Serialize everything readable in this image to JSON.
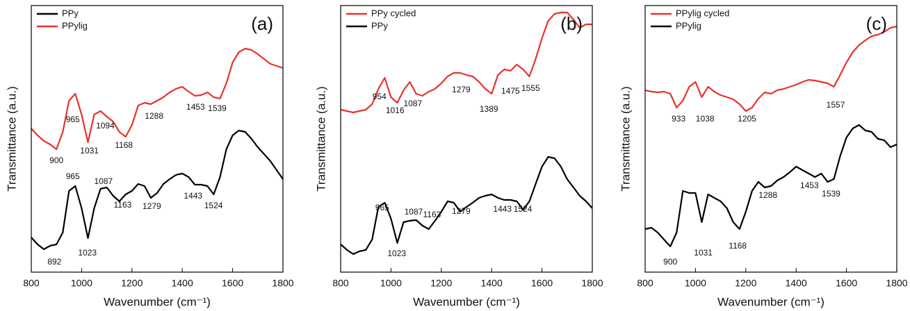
{
  "chart_data": [
    {
      "type": "line",
      "panel": "(a)",
      "xlabel": "Wavenumber (cm⁻¹)",
      "ylabel": "Transmittance (a.u.)",
      "xlim": [
        800,
        1800
      ],
      "xticks": [
        800,
        1000,
        1200,
        1400,
        1600,
        1800
      ],
      "ylim": [
        0,
        384
      ],
      "legend": "upper left",
      "x": [
        800,
        825,
        850,
        875,
        900,
        925,
        950,
        975,
        1000,
        1025,
        1050,
        1075,
        1100,
        1125,
        1150,
        1175,
        1200,
        1225,
        1250,
        1275,
        1300,
        1325,
        1350,
        1375,
        1400,
        1425,
        1450,
        1475,
        1500,
        1525,
        1550,
        1575,
        1600,
        1625,
        1650,
        1675,
        1700,
        1725,
        1750,
        1775,
        1800
      ],
      "series": [
        {
          "name": "PPy",
          "color": "#000000",
          "values": [
            50,
            40,
            33,
            38,
            40,
            57,
            117,
            124,
            92,
            49,
            92,
            120,
            122,
            110,
            102,
            112,
            117,
            127,
            124,
            107,
            114,
            127,
            134,
            140,
            142,
            137,
            126,
            126,
            124,
            112,
            137,
            177,
            197,
            204,
            202,
            192,
            180,
            170,
            160,
            147,
            134
          ]
        },
        {
          "name": "PPylig",
          "color": "#e8322e",
          "values": [
            207,
            197,
            189,
            184,
            177,
            202,
            247,
            257,
            227,
            187,
            227,
            232,
            224,
            217,
            202,
            195,
            212,
            240,
            244,
            242,
            247,
            252,
            259,
            264,
            267,
            260,
            254,
            255,
            259,
            252,
            250,
            272,
            302,
            317,
            322,
            320,
            314,
            307,
            300,
            297,
            294
          ]
        }
      ],
      "annotations": [
        {
          "text": "892",
          "x": 892,
          "y": 14
        },
        {
          "text": "965",
          "x": 965,
          "y": 137
        },
        {
          "text": "1023",
          "x": 1023,
          "y": 27
        },
        {
          "text": "1087",
          "x": 1087,
          "y": 130
        },
        {
          "text": "1163",
          "x": 1163,
          "y": 96
        },
        {
          "text": "1279",
          "x": 1279,
          "y": 94
        },
        {
          "text": "1443",
          "x": 1443,
          "y": 109
        },
        {
          "text": "1524",
          "x": 1524,
          "y": 95
        },
        {
          "text": "900",
          "x": 900,
          "y": 160
        },
        {
          "text": "965",
          "x": 965,
          "y": 219
        },
        {
          "text": "1031",
          "x": 1031,
          "y": 174
        },
        {
          "text": "1094",
          "x": 1094,
          "y": 210
        },
        {
          "text": "1168",
          "x": 1168,
          "y": 182
        },
        {
          "text": "1288",
          "x": 1288,
          "y": 224
        },
        {
          "text": "1453",
          "x": 1453,
          "y": 237
        },
        {
          "text": "1539",
          "x": 1539,
          "y": 235
        }
      ]
    },
    {
      "type": "line",
      "panel": "(b)",
      "xlabel": "Wavenumber (cm⁻¹)",
      "ylabel": "Transmittance (a.u.)",
      "xlim": [
        800,
        1800
      ],
      "xticks": [
        800,
        1000,
        1200,
        1400,
        1600,
        1800
      ],
      "ylim": [
        0,
        384
      ],
      "legend": "upper left",
      "x": [
        800,
        825,
        850,
        875,
        900,
        925,
        950,
        975,
        1000,
        1025,
        1050,
        1075,
        1100,
        1125,
        1150,
        1175,
        1200,
        1225,
        1250,
        1275,
        1300,
        1325,
        1350,
        1375,
        1400,
        1425,
        1450,
        1475,
        1500,
        1525,
        1550,
        1575,
        1600,
        1625,
        1650,
        1675,
        1700,
        1725,
        1750,
        1775,
        1800
      ],
      "series": [
        {
          "name": "PPy cycled",
          "color": "#e8322e",
          "values": [
            234,
            232,
            230,
            232,
            234,
            242,
            264,
            280,
            252,
            244,
            262,
            274,
            257,
            254,
            260,
            264,
            272,
            282,
            287,
            287,
            284,
            282,
            274,
            264,
            257,
            284,
            292,
            290,
            299,
            292,
            282,
            307,
            337,
            362,
            372,
            374,
            374,
            364,
            352,
            357,
            357
          ]
        },
        {
          "name": "PPy",
          "color": "#000000",
          "values": [
            40,
            32,
            26,
            30,
            32,
            47,
            94,
            100,
            77,
            42,
            72,
            74,
            75,
            67,
            62,
            74,
            87,
            102,
            100,
            87,
            94,
            100,
            107,
            110,
            112,
            107,
            104,
            104,
            102,
            90,
            102,
            127,
            152,
            166,
            164,
            152,
            134,
            122,
            110,
            102,
            92
          ]
        }
      ],
      "annotations": [
        {
          "text": "954",
          "x": 954,
          "y": 252
        },
        {
          "text": "1016",
          "x": 1016,
          "y": 232
        },
        {
          "text": "1087",
          "x": 1087,
          "y": 242
        },
        {
          "text": "1279",
          "x": 1279,
          "y": 262
        },
        {
          "text": "1389",
          "x": 1389,
          "y": 234
        },
        {
          "text": "1475",
          "x": 1475,
          "y": 260
        },
        {
          "text": "1555",
          "x": 1555,
          "y": 264
        },
        {
          "text": "965",
          "x": 965,
          "y": 92
        },
        {
          "text": "1023",
          "x": 1023,
          "y": 26
        },
        {
          "text": "1087",
          "x": 1090,
          "y": 86
        },
        {
          "text": "1163",
          "x": 1163,
          "y": 82
        },
        {
          "text": "1279",
          "x": 1279,
          "y": 87
        },
        {
          "text": "1443",
          "x": 1443,
          "y": 90
        },
        {
          "text": "1524",
          "x": 1524,
          "y": 90
        }
      ]
    },
    {
      "type": "line",
      "panel": "(c)",
      "xlabel": "Wavenumber (cm⁻¹)",
      "ylabel": "Transmittance (a.u.)",
      "xlim": [
        800,
        1800
      ],
      "xticks": [
        800,
        1000,
        1200,
        1400,
        1600,
        1800
      ],
      "ylim": [
        0,
        384
      ],
      "legend": "upper left",
      "x": [
        800,
        825,
        850,
        875,
        900,
        925,
        950,
        975,
        1000,
        1025,
        1050,
        1075,
        1100,
        1125,
        1150,
        1175,
        1200,
        1225,
        1250,
        1275,
        1300,
        1325,
        1350,
        1375,
        1400,
        1425,
        1450,
        1475,
        1500,
        1525,
        1550,
        1575,
        1600,
        1625,
        1650,
        1675,
        1700,
        1725,
        1750,
        1775,
        1800
      ],
      "series": [
        {
          "name": "PPylig cycled",
          "color": "#e8322e",
          "values": [
            262,
            260,
            259,
            260,
            257,
            237,
            247,
            267,
            274,
            252,
            267,
            260,
            255,
            252,
            249,
            242,
            232,
            237,
            250,
            259,
            257,
            262,
            264,
            267,
            270,
            274,
            277,
            276,
            274,
            272,
            267,
            284,
            302,
            317,
            327,
            334,
            340,
            342,
            346,
            352,
            354
          ]
        },
        {
          "name": "PPylig",
          "color": "#000000",
          "values": [
            62,
            64,
            57,
            47,
            37,
            57,
            117,
            114,
            114,
            72,
            112,
            107,
            102,
            92,
            72,
            62,
            87,
            117,
            130,
            122,
            124,
            132,
            137,
            144,
            152,
            147,
            142,
            137,
            142,
            130,
            134,
            167,
            194,
            207,
            212,
            204,
            202,
            192,
            190,
            180,
            184
          ]
        }
      ],
      "annotations": [
        {
          "text": "933",
          "x": 933,
          "y": 220
        },
        {
          "text": "1038",
          "x": 1038,
          "y": 220
        },
        {
          "text": "1205",
          "x": 1205,
          "y": 220
        },
        {
          "text": "1557",
          "x": 1557,
          "y": 240
        },
        {
          "text": "1288",
          "x": 1288,
          "y": 110
        },
        {
          "text": "1453",
          "x": 1453,
          "y": 124
        },
        {
          "text": "1539",
          "x": 1539,
          "y": 112
        },
        {
          "text": "900",
          "x": 900,
          "y": 14
        },
        {
          "text": "1031",
          "x": 1031,
          "y": 27
        },
        {
          "text": "1168",
          "x": 1168,
          "y": 37
        }
      ]
    }
  ]
}
